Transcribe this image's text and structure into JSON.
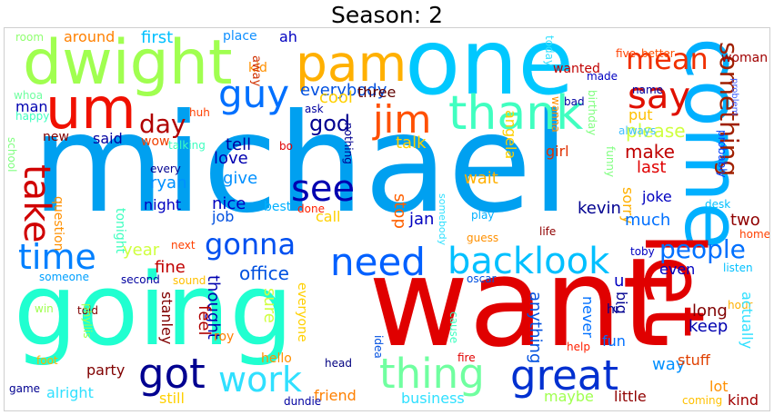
{
  "title": "Season: 2",
  "words": [
    {
      "text": "michael",
      "color": "#00a0f0"
    },
    {
      "text": "want",
      "color": "#e00000"
    },
    {
      "text": "going",
      "color": "#20ffd0"
    },
    {
      "text": "one",
      "color": "#00c8ff"
    },
    {
      "text": "dwight",
      "color": "#a0ff50"
    },
    {
      "text": "come",
      "color": "#00b0ff"
    },
    {
      "text": "um",
      "color": "#f01000"
    },
    {
      "text": "pam",
      "color": "#ffb000"
    },
    {
      "text": "thank",
      "color": "#40ffc0"
    },
    {
      "text": "let",
      "color": "#e00000"
    },
    {
      "text": "guy",
      "color": "#0070ff"
    },
    {
      "text": "jim",
      "color": "#ff5000"
    },
    {
      "text": "say",
      "color": "#e01000"
    },
    {
      "text": "mean",
      "color": "#f03000"
    },
    {
      "text": "something",
      "color": "#a02000"
    },
    {
      "text": "take",
      "color": "#d00000"
    },
    {
      "text": "see",
      "color": "#0000b0"
    },
    {
      "text": "time",
      "color": "#0080ff"
    },
    {
      "text": "need",
      "color": "#0060ff"
    },
    {
      "text": "backlook",
      "color": "#00c0ff"
    },
    {
      "text": "gonna",
      "color": "#0050f0"
    },
    {
      "text": "people",
      "color": "#0070ff"
    },
    {
      "text": "great",
      "color": "#0030d0"
    },
    {
      "text": "got",
      "color": "#000090"
    },
    {
      "text": "thing",
      "color": "#70ffa0"
    },
    {
      "text": "work",
      "color": "#30e0ff"
    },
    {
      "text": "office",
      "color": "#0050e0"
    },
    {
      "text": "day",
      "color": "#b00000"
    },
    {
      "text": "god",
      "color": "#000090"
    },
    {
      "text": "talk",
      "color": "#ffd000"
    },
    {
      "text": "make",
      "color": "#c00000"
    },
    {
      "text": "please",
      "color": "#d0ff40"
    },
    {
      "text": "put",
      "color": "#ffc000"
    },
    {
      "text": "first",
      "color": "#00c0ff"
    },
    {
      "text": "around",
      "color": "#ff8000"
    },
    {
      "text": "everybody",
      "color": "#0050e0"
    },
    {
      "text": "ah",
      "color": "#0000c0"
    },
    {
      "text": "place",
      "color": "#1090ff"
    },
    {
      "text": "room",
      "color": "#90ff70"
    },
    {
      "text": "man",
      "color": "#0000b0"
    },
    {
      "text": "whoa",
      "color": "#70ffa0"
    },
    {
      "text": "happy",
      "color": "#40ffc0"
    },
    {
      "text": "kid",
      "color": "#ff9000"
    },
    {
      "text": "away",
      "color": "#d03000"
    },
    {
      "text": "huh",
      "color": "#ff4000"
    },
    {
      "text": "cool",
      "color": "#ffd000"
    },
    {
      "text": "three",
      "color": "#600000"
    },
    {
      "text": "ask",
      "color": "#0000a0"
    },
    {
      "text": "angela",
      "color": "#ffd000"
    },
    {
      "text": "wanted",
      "color": "#c00000"
    },
    {
      "text": "bad",
      "color": "#0000a0"
    },
    {
      "text": "made",
      "color": "#0000c0"
    },
    {
      "text": "wanna",
      "color": "#ff9000"
    },
    {
      "text": "name",
      "color": "#0000a0"
    },
    {
      "text": "always",
      "color": "#40c0ff"
    },
    {
      "text": "five",
      "color": "#ff4000"
    },
    {
      "text": "better",
      "color": "#ff5000"
    },
    {
      "text": "birthday",
      "color": "#80ff80"
    },
    {
      "text": "today",
      "color": "#30e0ff"
    },
    {
      "text": "woman",
      "color": "#a00000"
    },
    {
      "text": "problem",
      "color": "#4060ff"
    },
    {
      "text": "probably",
      "color": "#0040ff"
    },
    {
      "text": "new",
      "color": "#800000"
    },
    {
      "text": "said",
      "color": "#0000a0"
    },
    {
      "text": "wow",
      "color": "#f04000"
    },
    {
      "text": "tell",
      "color": "#0000a0"
    },
    {
      "text": "love",
      "color": "#0000b0"
    },
    {
      "text": "give",
      "color": "#0090ff"
    },
    {
      "text": "talking",
      "color": "#40ffc0"
    },
    {
      "text": "bo",
      "color": "#e00000"
    },
    {
      "text": "girl",
      "color": "#e03000"
    },
    {
      "text": "last",
      "color": "#e00000"
    },
    {
      "text": "funny",
      "color": "#80ff80"
    },
    {
      "text": "school",
      "color": "#80ff80"
    },
    {
      "text": "question",
      "color": "#ff9000"
    },
    {
      "text": "every",
      "color": "#000090"
    },
    {
      "text": "ryan",
      "color": "#0090ff"
    },
    {
      "text": "nothing",
      "color": "#000090"
    },
    {
      "text": "stop",
      "color": "#ff6000"
    },
    {
      "text": "wait",
      "color": "#ffb000"
    },
    {
      "text": "joke",
      "color": "#0000c0"
    },
    {
      "text": "desk",
      "color": "#00c0ff"
    },
    {
      "text": "night",
      "color": "#0000c0"
    },
    {
      "text": "nice",
      "color": "#0000c0"
    },
    {
      "text": "kevin",
      "color": "#000090"
    },
    {
      "text": "sorry",
      "color": "#ffb000"
    },
    {
      "text": "tonight",
      "color": "#40ffc0"
    },
    {
      "text": "best",
      "color": "#00b0ff"
    },
    {
      "text": "job",
      "color": "#0050e0"
    },
    {
      "text": "call",
      "color": "#ffd000"
    },
    {
      "text": "jan",
      "color": "#0000c0"
    },
    {
      "text": "much",
      "color": "#0070ff"
    },
    {
      "text": "two",
      "color": "#900000"
    },
    {
      "text": "done",
      "color": "#ff2000"
    },
    {
      "text": "somebody",
      "color": "#30e0ff"
    },
    {
      "text": "guess",
      "color": "#ff9000"
    },
    {
      "text": "play",
      "color": "#00b0ff"
    },
    {
      "text": "life",
      "color": "#900000"
    },
    {
      "text": "year",
      "color": "#d0ff40"
    },
    {
      "text": "next",
      "color": "#ff4000"
    },
    {
      "text": "toby",
      "color": "#0000c0"
    },
    {
      "text": "home",
      "color": "#ff4000"
    },
    {
      "text": "fine",
      "color": "#c00000"
    },
    {
      "text": "even",
      "color": "#0000c0"
    },
    {
      "text": "listen",
      "color": "#00c0ff"
    },
    {
      "text": "someone",
      "color": "#00a0ff"
    },
    {
      "text": "second",
      "color": "#0000a0"
    },
    {
      "text": "sound",
      "color": "#ffc000"
    },
    {
      "text": "everyone",
      "color": "#ffd000"
    },
    {
      "text": "u",
      "color": "#0000c0"
    },
    {
      "text": "oscar",
      "color": "#0050e0"
    },
    {
      "text": "hour",
      "color": "#ffb000"
    },
    {
      "text": "win",
      "color": "#a0ff50"
    },
    {
      "text": "told",
      "color": "#800000"
    },
    {
      "text": "thought",
      "color": "#0000b0"
    },
    {
      "text": "feel",
      "color": "#b00000"
    },
    {
      "text": "sure",
      "color": "#d0ff40"
    },
    {
      "text": "anything",
      "color": "#0050e0"
    },
    {
      "text": "hi",
      "color": "#000090"
    },
    {
      "text": "big",
      "color": "#000090"
    },
    {
      "text": "long",
      "color": "#800000"
    },
    {
      "text": "keep",
      "color": "#0000b0"
    },
    {
      "text": "actually",
      "color": "#30e0ff"
    },
    {
      "text": "stanley",
      "color": "#800000"
    },
    {
      "text": "phyllis",
      "color": "#a0ff50"
    },
    {
      "text": "idea",
      "color": "#0050e0"
    },
    {
      "text": "cause",
      "color": "#40ffc0"
    },
    {
      "text": "never",
      "color": "#0070ff"
    },
    {
      "text": "fun",
      "color": "#0070ff"
    },
    {
      "text": "help",
      "color": "#ff2000"
    },
    {
      "text": "roy",
      "color": "#ff8000"
    },
    {
      "text": "hello",
      "color": "#ff9000"
    },
    {
      "text": "fire",
      "color": "#e00000"
    },
    {
      "text": "way",
      "color": "#0090ff"
    },
    {
      "text": "stuff",
      "color": "#e04000"
    },
    {
      "text": "head",
      "color": "#000080"
    },
    {
      "text": "foot",
      "color": "#ffb000"
    },
    {
      "text": "party",
      "color": "#800000"
    },
    {
      "text": "friend",
      "color": "#ff8000"
    },
    {
      "text": "maybe",
      "color": "#a0ff50"
    },
    {
      "text": "lot",
      "color": "#ff9000"
    },
    {
      "text": "kind",
      "color": "#a00000"
    },
    {
      "text": "coming",
      "color": "#ffc000"
    },
    {
      "text": "alright",
      "color": "#30e0ff"
    },
    {
      "text": "still",
      "color": "#ffd000"
    },
    {
      "text": "business",
      "color": "#30e0ff"
    },
    {
      "text": "little",
      "color": "#900000"
    },
    {
      "text": "game",
      "color": "#000090"
    },
    {
      "text": "dundie",
      "color": "#0000a0"
    }
  ]
}
